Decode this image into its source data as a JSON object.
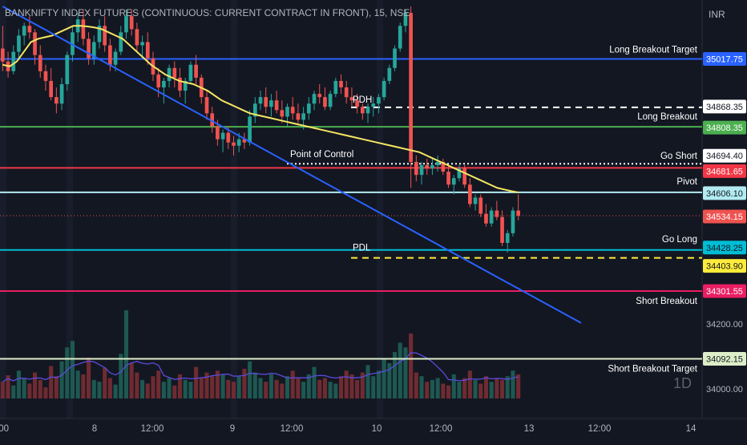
{
  "header": {
    "title": "BANKNIFTY INDEX FUTURES (CONTINUOUS: CURRENT CONTRACT IN FRONT), 15, NSE",
    "currency": "INR",
    "watermark": "1D"
  },
  "colors": {
    "background": "#131722",
    "up": "#26a69a",
    "down": "#ef5350",
    "trendline": "#2962ff",
    "ma": "#f5e663",
    "volume_ma": "#5b4bdb"
  },
  "chart_data": {
    "type": "candlestick",
    "symbol": "BANKNIFTY INDEX FUTURES (CONTINUOUS: CURRENT CONTRACT IN FRONT)",
    "interval": "15",
    "exchange": "NSE",
    "ylim": [
      33950,
      35180
    ],
    "y_ticks": [
      34000.0,
      34200.0
    ],
    "x_ticks": [
      {
        "label": "8"
      },
      {
        "label": "12:00"
      },
      {
        "label": "9"
      },
      {
        "label": "12:00"
      },
      {
        "label": "10"
      },
      {
        "label": "12:00"
      },
      {
        "label": "13"
      },
      {
        "label": "12:00"
      },
      {
        "label": "14"
      }
    ],
    "x_tick_left_partial": ":00",
    "levels": [
      {
        "name": "Long Breakout Target",
        "value": 35017.75,
        "color": "#2962ff",
        "style": "solid"
      },
      {
        "name": "PDH",
        "value": 34868.35,
        "color": "#ffffff",
        "style": "dashed"
      },
      {
        "name": "Long Breakout",
        "value": 34808.35,
        "color": "#4caf50",
        "style": "solid"
      },
      {
        "name": "Point of Control / Go Short",
        "value": 34694.4,
        "color": "#ffffff",
        "style": "dotted"
      },
      {
        "name": "",
        "value": 34681.65,
        "color": "#f23645",
        "style": "solid"
      },
      {
        "name": "Pivot",
        "value": 34606.1,
        "color": "#b2ebf2",
        "style": "solid"
      },
      {
        "name": "",
        "value": 34534.15,
        "color": "#ef5350",
        "style": "last-price"
      },
      {
        "name": "Go Long",
        "value": 34428.25,
        "color": "#00bcd4",
        "style": "solid"
      },
      {
        "name": "PDL",
        "value": 34403.9,
        "color": "#ffeb3b",
        "style": "dashed"
      },
      {
        "name": "Short Breakout",
        "value": 34301.55,
        "color": "#e91e63",
        "style": "solid"
      },
      {
        "name": "Short Breakout Target",
        "value": 34092.15,
        "color": "#dcedc8",
        "style": "solid"
      }
    ],
    "level_labels": [
      {
        "text": "Long Breakout Target",
        "value": 35017.75
      },
      {
        "text": "PDH",
        "value": 34868.35
      },
      {
        "text": "Long Breakout",
        "value": 34808.35
      },
      {
        "text": "Point of Control",
        "value": 34694.4
      },
      {
        "text": "Go Short",
        "value": 34694.4
      },
      {
        "text": "Pivot",
        "value": 34606.1
      },
      {
        "text": "Go Long",
        "value": 34428.25
      },
      {
        "text": "PDL",
        "value": 34403.9
      },
      {
        "text": "Short Breakout",
        "value": 34301.55
      },
      {
        "text": "Short Breakout Target",
        "value": 34092.15
      }
    ],
    "price_tags": [
      {
        "text": "35017.75",
        "value": 35017.75,
        "bg": "#2962ff",
        "fg": "#ffffff"
      },
      {
        "text": "34868.35",
        "value": 34868.35,
        "bg": "#ffffff",
        "fg": "#131722"
      },
      {
        "text": "34808.35",
        "value": 34808.35,
        "bg": "#4caf50",
        "fg": "#ffffff"
      },
      {
        "text": "34694.40",
        "value": 34694.4,
        "bg": "#ffffff",
        "fg": "#131722"
      },
      {
        "text": "34681.65",
        "value": 34681.65,
        "bg": "#f23645",
        "fg": "#ffffff"
      },
      {
        "text": "34606.10",
        "value": 34606.1,
        "bg": "#b2ebf2",
        "fg": "#131722"
      },
      {
        "text": "34534.15",
        "value": 34534.15,
        "bg": "#ef5350",
        "fg": "#ffffff"
      },
      {
        "text": "34428.25",
        "value": 34428.25,
        "bg": "#00bcd4",
        "fg": "#131722"
      },
      {
        "text": "34403.90",
        "value": 34403.9,
        "bg": "#ffeb3b",
        "fg": "#131722"
      },
      {
        "text": "34301.55",
        "value": 34301.55,
        "bg": "#e91e63",
        "fg": "#ffffff"
      },
      {
        "text": "34092.15",
        "value": 34092.15,
        "bg": "#dcedc8",
        "fg": "#131722"
      }
    ],
    "candles": [
      [
        35050,
        35120,
        34980,
        35010
      ],
      [
        35010,
        35040,
        34960,
        34980
      ],
      [
        34980,
        35060,
        34970,
        35040
      ],
      [
        35040,
        35110,
        35020,
        35090
      ],
      [
        35090,
        35130,
        35060,
        35120
      ],
      [
        35120,
        35150,
        35080,
        35100
      ],
      [
        35100,
        35110,
        35000,
        35030
      ],
      [
        35030,
        35060,
        34960,
        34980
      ],
      [
        34980,
        35000,
        34920,
        34950
      ],
      [
        34950,
        34990,
        34890,
        34900
      ],
      [
        34900,
        34930,
        34850,
        34880
      ],
      [
        34880,
        34960,
        34860,
        34940
      ],
      [
        34940,
        35040,
        34920,
        35030
      ],
      [
        35030,
        35120,
        35010,
        35100
      ],
      [
        35100,
        35160,
        35070,
        35140
      ],
      [
        35140,
        35170,
        35060,
        35080
      ],
      [
        35080,
        35100,
        35000,
        35020
      ],
      [
        35020,
        35090,
        35000,
        35070
      ],
      [
        35070,
        35140,
        35050,
        35120
      ],
      [
        35120,
        35150,
        35040,
        35060
      ],
      [
        35060,
        35080,
        34980,
        35000
      ],
      [
        35000,
        35050,
        34980,
        35040
      ],
      [
        35040,
        35120,
        35030,
        35100
      ],
      [
        35100,
        35170,
        35080,
        35150
      ],
      [
        35150,
        35170,
        35090,
        35110
      ],
      [
        35110,
        35130,
        35040,
        35060
      ],
      [
        35060,
        35090,
        35020,
        35070
      ],
      [
        35070,
        35100,
        35000,
        35020
      ],
      [
        35020,
        35040,
        34950,
        34970
      ],
      [
        34970,
        34990,
        34900,
        34930
      ],
      [
        34930,
        34960,
        34880,
        34950
      ],
      [
        34950,
        35000,
        34930,
        34990
      ],
      [
        34990,
        35010,
        34930,
        34960
      ],
      [
        34960,
        34990,
        34900,
        34920
      ],
      [
        34920,
        34960,
        34880,
        34950
      ],
      [
        34950,
        35010,
        34940,
        35000
      ],
      [
        35000,
        35030,
        34940,
        34960
      ],
      [
        34960,
        34970,
        34880,
        34900
      ],
      [
        34900,
        34920,
        34830,
        34850
      ],
      [
        34850,
        34870,
        34790,
        34810
      ],
      [
        34810,
        34830,
        34750,
        34770
      ],
      [
        34770,
        34800,
        34730,
        34790
      ],
      [
        34790,
        34810,
        34740,
        34760
      ],
      [
        34760,
        34780,
        34720,
        34750
      ],
      [
        34750,
        34790,
        34730,
        34770
      ],
      [
        34770,
        34790,
        34740,
        34760
      ],
      [
        34760,
        34860,
        34750,
        34840
      ],
      [
        34840,
        34900,
        34820,
        34880
      ],
      [
        34880,
        34920,
        34860,
        34900
      ],
      [
        34900,
        34930,
        34850,
        34870
      ],
      [
        34870,
        34910,
        34840,
        34890
      ],
      [
        34890,
        34920,
        34850,
        34860
      ],
      [
        34860,
        34890,
        34820,
        34840
      ],
      [
        34840,
        34880,
        34810,
        34870
      ],
      [
        34870,
        34900,
        34830,
        34850
      ],
      [
        34850,
        34880,
        34820,
        34830
      ],
      [
        34830,
        34870,
        34800,
        34850
      ],
      [
        34850,
        34900,
        34830,
        34880
      ],
      [
        34880,
        34920,
        34860,
        34910
      ],
      [
        34910,
        34940,
        34880,
        34900
      ],
      [
        34900,
        34930,
        34860,
        34870
      ],
      [
        34870,
        34920,
        34860,
        34910
      ],
      [
        34910,
        34960,
        34900,
        34950
      ],
      [
        34950,
        34970,
        34910,
        34930
      ],
      [
        34930,
        34950,
        34880,
        34900
      ],
      [
        34900,
        34930,
        34870,
        34890
      ],
      [
        34890,
        34910,
        34850,
        34870
      ],
      [
        34870,
        34880,
        34830,
        34850
      ],
      [
        34850,
        34880,
        34820,
        34870
      ],
      [
        34870,
        34900,
        34840,
        34880
      ],
      [
        34880,
        34910,
        34850,
        34900
      ],
      [
        34900,
        34960,
        34890,
        34950
      ],
      [
        34950,
        35000,
        34940,
        34990
      ],
      [
        34990,
        35060,
        34980,
        35050
      ],
      [
        35050,
        35130,
        35040,
        35120
      ],
      [
        35120,
        35170,
        35100,
        35160
      ],
      [
        35160,
        35180,
        34620,
        34700
      ],
      [
        34700,
        34720,
        34640,
        34660
      ],
      [
        34660,
        34700,
        34630,
        34690
      ],
      [
        34690,
        34710,
        34660,
        34680
      ],
      [
        34680,
        34710,
        34660,
        34690
      ],
      [
        34690,
        34720,
        34670,
        34700
      ],
      [
        34700,
        34710,
        34660,
        34670
      ],
      [
        34670,
        34690,
        34620,
        34630
      ],
      [
        34630,
        34660,
        34600,
        34650
      ],
      [
        34650,
        34690,
        34640,
        34680
      ],
      [
        34680,
        34690,
        34620,
        34630
      ],
      [
        34630,
        34650,
        34560,
        34570
      ],
      [
        34570,
        34600,
        34550,
        34590
      ],
      [
        34590,
        34600,
        34530,
        34540
      ],
      [
        34540,
        34570,
        34500,
        34510
      ],
      [
        34510,
        34560,
        34500,
        34550
      ],
      [
        34550,
        34580,
        34520,
        34530
      ],
      [
        34530,
        34550,
        34440,
        34450
      ],
      [
        34450,
        34490,
        34420,
        34480
      ],
      [
        34480,
        34560,
        34470,
        34550
      ],
      [
        34550,
        34600,
        34520,
        34534
      ]
    ],
    "volume": [
      18,
      25,
      14,
      30,
      22,
      16,
      28,
      20,
      12,
      35,
      24,
      40,
      55,
      62,
      30,
      26,
      44,
      20,
      18,
      33,
      22,
      15,
      48,
      95,
      38,
      28,
      20,
      16,
      24,
      30,
      18,
      22,
      14,
      26,
      20,
      18,
      34,
      22,
      28,
      24,
      30,
      26,
      20,
      18,
      24,
      32,
      40,
      28,
      22,
      18,
      26,
      20,
      16,
      24,
      30,
      22,
      18,
      26,
      34,
      20,
      22,
      18,
      16,
      24,
      30,
      26,
      20,
      28,
      36,
      24,
      30,
      42,
      38,
      50,
      60,
      55,
      70,
      28,
      24,
      18,
      20,
      22,
      16,
      14,
      26,
      18,
      22,
      30,
      20,
      16,
      24,
      18,
      22,
      20,
      24,
      30,
      26
    ],
    "ma": [
      35000,
      34995,
      35010,
      35040,
      35070,
      35080,
      35085,
      35090,
      35100,
      35110,
      35120,
      35120,
      35118,
      35115,
      35110,
      35100,
      35090,
      35080,
      35060,
      35040,
      35020,
      35000,
      34985,
      34970,
      34960,
      34950,
      34945,
      34940,
      34930,
      34920,
      34905,
      34890,
      34880,
      34870,
      34860,
      34850,
      34845,
      34840,
      34835,
      34830,
      34825,
      34820,
      34815,
      34810,
      34805,
      34800,
      34795,
      34790,
      34785,
      34780,
      34775,
      34770,
      34765,
      34760,
      34755,
      34750,
      34745,
      34740,
      34735,
      34730,
      34720,
      34710,
      34700,
      34690,
      34680,
      34670,
      34660,
      34650,
      34640,
      34630,
      34620,
      34615,
      34610,
      34606
    ],
    "trendline": [
      [
        0,
        35180
      ],
      [
        97,
        34300
      ]
    ]
  }
}
